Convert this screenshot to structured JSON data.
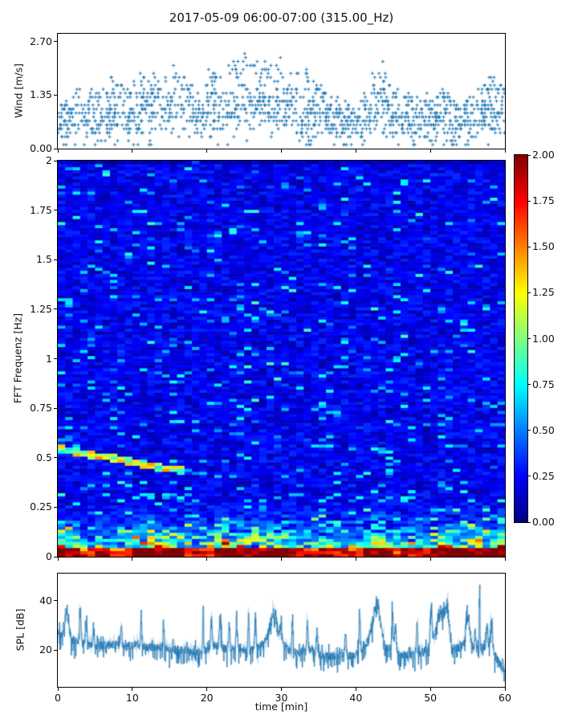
{
  "title": "2017-05-09 06:00-07:00 (315.00_Hz)",
  "figure": {
    "background": "#ffffff"
  },
  "chart_data": [
    {
      "id": "wind",
      "type": "scatter",
      "ylabel": "Wind [m/s]",
      "marker": "+",
      "color": "#1f77b4",
      "xlim": [
        0,
        60
      ],
      "ylim": [
        0,
        2.9
      ],
      "yticks": [
        {
          "v": 0,
          "label": "0.00"
        },
        {
          "v": 1.35,
          "label": "1.35"
        },
        {
          "v": 2.7,
          "label": "2.70"
        }
      ],
      "xticks": [
        0,
        10,
        20,
        30,
        40,
        50,
        60
      ],
      "y_quantum": 0.1,
      "seed": 42,
      "minute_max": [
        1.1,
        1.4,
        1.5,
        1.4,
        1.5,
        1.4,
        1.5,
        1.9,
        1.6,
        1.5,
        1.7,
        2.1,
        2.2,
        1.9,
        2.1,
        2.2,
        1.9,
        1.8,
        1.6,
        1.7,
        2.0,
        2.3,
        2.2,
        2.4,
        2.7,
        2.6,
        2.3,
        2.2,
        2.1,
        2.5,
        2.3,
        2.1,
        1.9,
        2.0,
        1.8,
        1.6,
        1.4,
        1.3,
        1.2,
        1.1,
        1.2,
        1.5,
        2.0,
        2.3,
        1.9,
        1.5,
        1.3,
        1.4,
        1.3,
        1.4,
        1.3,
        1.5,
        1.4,
        1.2,
        1.3,
        1.4,
        1.6,
        1.9,
        1.8,
        1.7
      ]
    },
    {
      "id": "spectrogram",
      "type": "heatmap",
      "ylabel": "FFT Frequenz [Hz]",
      "colormap": "jet",
      "clim": [
        0,
        2
      ],
      "xlim": [
        0,
        60
      ],
      "ylim": [
        0,
        2
      ],
      "yticks": [
        {
          "v": 0,
          "label": "0"
        },
        {
          "v": 0.25,
          "label": "0.25"
        },
        {
          "v": 0.5,
          "label": "0.5"
        },
        {
          "v": 0.75,
          "label": "0.75"
        },
        {
          "v": 1,
          "label": "1"
        },
        {
          "v": 1.25,
          "label": "1.25"
        },
        {
          "v": 1.5,
          "label": "1.5"
        },
        {
          "v": 1.75,
          "label": "1.75"
        },
        {
          "v": 2,
          "label": "2"
        }
      ],
      "xticks": [
        0,
        10,
        20,
        30,
        40,
        50,
        60
      ],
      "columns": 60,
      "rows": 130,
      "seed": 99,
      "ridge": {
        "t_start": 0,
        "t_end": 16,
        "f_start": 0.545,
        "f_end": 0.436
      },
      "column_activity": [
        0.9,
        0.8,
        0.7,
        0.3,
        0.4,
        0.6,
        0.6,
        0.3,
        0.35,
        0.4,
        0.85,
        0.9,
        0.9,
        0.8,
        0.85,
        0.9,
        0.8,
        0.6,
        0.4,
        0.45,
        0.6,
        0.8,
        0.85,
        0.9,
        0.85,
        0.8,
        0.85,
        0.8,
        0.75,
        0.9,
        0.8,
        0.7,
        0.5,
        0.55,
        0.45,
        0.6,
        0.65,
        0.6,
        0.5,
        0.4,
        0.45,
        0.7,
        0.85,
        0.9,
        0.7,
        0.5,
        0.6,
        0.65,
        0.6,
        0.5,
        0.8,
        0.85,
        0.8,
        0.85,
        0.9,
        0.9,
        0.85,
        0.9,
        0.95,
        0.9
      ]
    },
    {
      "id": "spl",
      "type": "line",
      "ylabel": "SPL [dB]",
      "xlabel": "time [min]",
      "color": "#1f77b4",
      "xlim": [
        0,
        60
      ],
      "ylim": [
        5,
        51
      ],
      "yticks": [
        {
          "v": 20,
          "label": "20"
        },
        {
          "v": 40,
          "label": "40"
        }
      ],
      "xticks": [
        {
          "v": 0,
          "label": "0"
        },
        {
          "v": 10,
          "label": "10"
        },
        {
          "v": 20,
          "label": "20"
        },
        {
          "v": 30,
          "label": "30"
        },
        {
          "v": 40,
          "label": "40"
        },
        {
          "v": 50,
          "label": "50"
        },
        {
          "v": 60,
          "label": "60"
        }
      ],
      "seed": 7,
      "noise_amp": 3.4,
      "minute_base": [
        23,
        26,
        24,
        23,
        22,
        21,
        22,
        22,
        22,
        21,
        22,
        22,
        21,
        21,
        21,
        20,
        20,
        20,
        19,
        19,
        20,
        22,
        21,
        20,
        21,
        20,
        20,
        21,
        24,
        27,
        23,
        20,
        19,
        19,
        20,
        18,
        17.5,
        17.5,
        18,
        17.5,
        18,
        20,
        25,
        26,
        20,
        21,
        18,
        18,
        18,
        19,
        22,
        26,
        25,
        20,
        21,
        23,
        20,
        21,
        21,
        16
      ],
      "peaks": [
        [
          0.1,
          5,
          0.2
        ],
        [
          1.2,
          10,
          0.25
        ],
        [
          3.0,
          15,
          0.09
        ],
        [
          3.8,
          11,
          0.1
        ],
        [
          4.8,
          8,
          0.1
        ],
        [
          8.5,
          8,
          0.1
        ],
        [
          11.2,
          14,
          0.07
        ],
        [
          14.2,
          12,
          0.07
        ],
        [
          19.5,
          22,
          0.05
        ],
        [
          20.6,
          12,
          0.09
        ],
        [
          21.8,
          13,
          0.1
        ],
        [
          23.0,
          11,
          0.09
        ],
        [
          24.0,
          12,
          0.09
        ],
        [
          25.6,
          14,
          0.08
        ],
        [
          26.5,
          14,
          0.09
        ],
        [
          29.0,
          9,
          0.45
        ],
        [
          30.0,
          8,
          0.1
        ],
        [
          31.5,
          14,
          0.08
        ],
        [
          33.5,
          14,
          0.08
        ],
        [
          34.8,
          9,
          0.1
        ],
        [
          38.6,
          9,
          0.09
        ],
        [
          40.5,
          16,
          0.09
        ],
        [
          42.8,
          13,
          0.5
        ],
        [
          44.9,
          14,
          0.1
        ],
        [
          45.3,
          10,
          0.1
        ],
        [
          48.2,
          12,
          0.09
        ],
        [
          50.1,
          14,
          0.12
        ],
        [
          51.5,
          10,
          0.5
        ],
        [
          52.3,
          11,
          0.25
        ],
        [
          55.0,
          13,
          0.25
        ],
        [
          56.0,
          9,
          0.09
        ],
        [
          56.6,
          28,
          0.045
        ],
        [
          57.6,
          12,
          0.09
        ],
        [
          58.2,
          13,
          0.12
        ]
      ]
    }
  ],
  "colorbar": {
    "colormap": "jet",
    "clim": [
      0,
      2
    ],
    "ticks": [
      {
        "v": 0,
        "label": "0.00"
      },
      {
        "v": 0.25,
        "label": "0.25"
      },
      {
        "v": 0.5,
        "label": "0.50"
      },
      {
        "v": 0.75,
        "label": "0.75"
      },
      {
        "v": 1,
        "label": "1.00"
      },
      {
        "v": 1.25,
        "label": "1.25"
      },
      {
        "v": 1.5,
        "label": "1.50"
      },
      {
        "v": 1.75,
        "label": "1.75"
      },
      {
        "v": 2,
        "label": "2.00"
      }
    ]
  }
}
